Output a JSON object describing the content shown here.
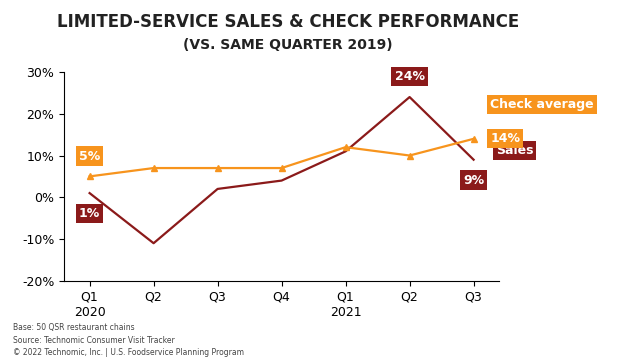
{
  "chart_data": {
    "type": "line",
    "title": "LIMITED-SERVICE SALES & CHECK PERFORMANCE",
    "subtitle": "(VS. SAME QUARTER 2019)",
    "categories": [
      "Q1\n2020",
      "Q2",
      "Q3",
      "Q4",
      "Q1\n2021",
      "Q2",
      "Q3"
    ],
    "series": [
      {
        "name": "Sales",
        "color": "#8b1a1a",
        "marker": "none",
        "line_style": "solid",
        "values": [
          1,
          -11,
          2,
          4,
          11,
          24,
          9
        ],
        "value_labels": [
          "1%",
          null,
          null,
          null,
          null,
          "24%",
          "9%"
        ]
      },
      {
        "name": "Check average",
        "color": "#f7941d",
        "marker": "triangle",
        "line_style": "solid",
        "values": [
          5,
          7,
          7,
          7,
          12,
          10,
          14
        ],
        "value_labels": [
          "5%",
          null,
          null,
          null,
          null,
          null,
          "14%"
        ]
      }
    ],
    "ylim": [
      -20,
      30
    ],
    "yticks": [
      {
        "value": -20,
        "label": "-20%"
      },
      {
        "value": -10,
        "label": "-10%"
      },
      {
        "value": 0,
        "label": "0%"
      },
      {
        "value": 10,
        "label": "10%"
      },
      {
        "value": 20,
        "label": "20%"
      },
      {
        "value": 30,
        "label": "30%"
      }
    ],
    "grid": false,
    "data_labels": true,
    "notes": [
      "Base: 50 QSR restaurant chains",
      "Source: Technomic Consumer Visit Tracker",
      "© 2022 Technomic, Inc. | U.S. Foodservice Planning Program"
    ]
  }
}
